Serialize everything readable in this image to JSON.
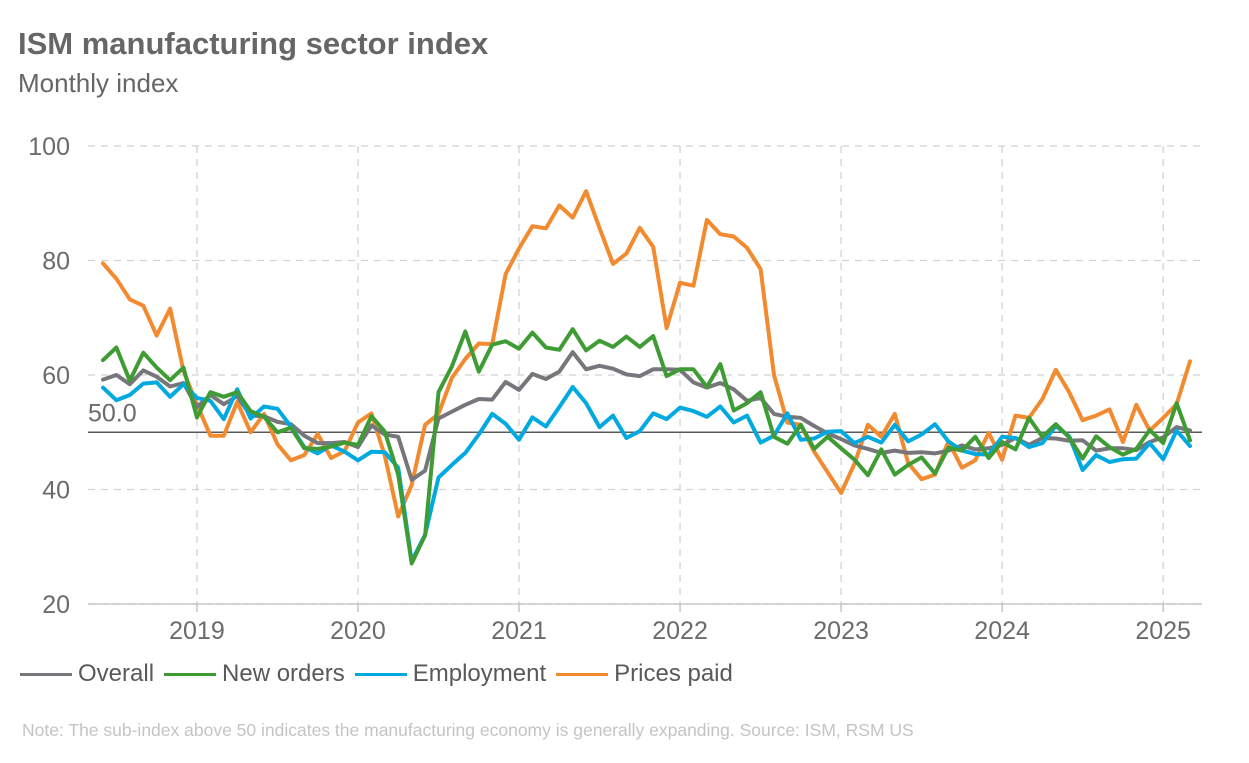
{
  "title": "ISM manufacturing sector index",
  "subtitle": "Monthly index",
  "note": "Note: The sub-index above 50 indicates the manufacturing economy is generally expanding. Source: ISM, RSM US",
  "chart_data": {
    "type": "line",
    "title": "ISM manufacturing sector index",
    "subtitle": "Monthly index",
    "x_start": "2018-06",
    "x_end": "2025-03",
    "x_tick_labels": [
      "2019",
      "2020",
      "2021",
      "2022",
      "2023",
      "2024",
      "2025"
    ],
    "ylim": [
      20,
      100
    ],
    "y_ticks": [
      20,
      40,
      60,
      80,
      100
    ],
    "reference_line": {
      "value": 50,
      "label": "50.0"
    },
    "grid": true,
    "legend_position": "bottom",
    "series": [
      {
        "name": "Overall",
        "color": "#77767b",
        "values": [
          59.2,
          60.0,
          58.4,
          60.8,
          59.7,
          58.0,
          58.6,
          54.4,
          56.5,
          54.9,
          56.3,
          52.9,
          52.8,
          51.8,
          51.4,
          49.4,
          48.1,
          48.1,
          48.3,
          47.4,
          51.2,
          49.6,
          49.2,
          41.7,
          43.3,
          52.4,
          53.6,
          54.8,
          55.8,
          55.7,
          58.8,
          57.4,
          60.2,
          59.3,
          60.6,
          64.0,
          61.0,
          61.6,
          61.1,
          60.1,
          59.8,
          61.0,
          61.0,
          60.9,
          58.7,
          57.8,
          58.6,
          57.5,
          55.5,
          56.0,
          53.2,
          52.7,
          52.5,
          51.1,
          49.8,
          48.8,
          47.7,
          47.1,
          46.4,
          46.8,
          46.4,
          46.5,
          46.3,
          46.8,
          47.7,
          47.0,
          47.2,
          47.8,
          49.0,
          47.8,
          49.0,
          48.9,
          48.5,
          48.6,
          46.8,
          47.2,
          47.2,
          46.9,
          48.3,
          49.1,
          50.9,
          50.3
        ]
      },
      {
        "name": "New orders",
        "color": "#3f9c35",
        "values": [
          62.6,
          64.8,
          59.0,
          63.9,
          61.3,
          59.1,
          61.3,
          52.6,
          57.0,
          56.2,
          57.0,
          53.7,
          52.7,
          50.0,
          50.8,
          47.2,
          47.1,
          47.5,
          48.2,
          47.8,
          52.8,
          50.1,
          42.6,
          27.1,
          32.0,
          57.0,
          61.5,
          67.6,
          60.6,
          65.3,
          65.9,
          64.6,
          67.4,
          64.8,
          64.4,
          68.0,
          64.3,
          66.0,
          64.9,
          66.7,
          64.9,
          66.8,
          59.8,
          61.0,
          61.0,
          57.9,
          61.9,
          53.8,
          55.1,
          57.0,
          49.2,
          48.0,
          51.3,
          47.1,
          49.2,
          47.2,
          45.2,
          42.5,
          47.0,
          42.6,
          44.3,
          45.6,
          42.8,
          47.3,
          46.8,
          49.2,
          45.5,
          48.3,
          47.0,
          52.5,
          49.2,
          51.4,
          49.1,
          45.4,
          49.3,
          47.4,
          46.1,
          47.1,
          50.4,
          48.1,
          55.1,
          48.6
        ]
      },
      {
        "name": "Employment",
        "color": "#00a9e0",
        "values": [
          57.8,
          55.6,
          56.5,
          58.5,
          58.7,
          56.2,
          58.4,
          56.0,
          55.5,
          52.3,
          57.5,
          52.4,
          54.5,
          54.1,
          51.0,
          47.4,
          46.3,
          47.7,
          46.6,
          45.1,
          46.6,
          46.5,
          43.8,
          27.5,
          32.1,
          42.1,
          44.3,
          46.4,
          49.6,
          53.2,
          51.5,
          48.7,
          52.6,
          51.0,
          54.4,
          57.9,
          55.1,
          50.9,
          52.9,
          49.0,
          50.2,
          53.3,
          52.3,
          54.3,
          53.7,
          52.7,
          54.5,
          51.7,
          52.9,
          48.2,
          49.4,
          53.3,
          48.7,
          48.9,
          50.1,
          50.2,
          48.1,
          49.2,
          48.2,
          51.3,
          48.4,
          49.6,
          51.4,
          48.4,
          46.8,
          46.2,
          46.1,
          49.2,
          49.0,
          47.4,
          48.1,
          51.1,
          49.3,
          43.4,
          46.0,
          44.8,
          45.3,
          45.4,
          48.1,
          45.3,
          50.3,
          47.6
        ]
      },
      {
        "name": "Prices paid",
        "color": "#f28a30",
        "values": [
          79.5,
          76.8,
          73.2,
          72.1,
          66.9,
          71.6,
          60.7,
          54.9,
          49.4,
          49.4,
          55.3,
          50.0,
          53.2,
          47.9,
          45.1,
          46.0,
          49.7,
          45.5,
          46.7,
          51.7,
          53.3,
          45.9,
          35.3,
          40.8,
          51.3,
          53.2,
          59.5,
          62.8,
          65.5,
          65.4,
          77.6,
          82.1,
          86.0,
          85.6,
          89.6,
          87.5,
          92.1,
          85.7,
          79.4,
          81.2,
          85.7,
          82.4,
          68.2,
          76.1,
          75.6,
          87.1,
          84.6,
          84.2,
          82.2,
          78.5,
          60.0,
          51.7,
          51.3,
          46.6,
          43.0,
          39.4,
          44.5,
          51.3,
          49.2,
          53.2,
          44.6,
          41.8,
          42.6,
          48.4,
          43.8,
          45.1,
          49.9,
          45.2,
          52.9,
          52.5,
          55.8,
          60.9,
          57.0,
          52.1,
          52.9,
          54.0,
          48.3,
          54.8,
          50.3,
          52.5,
          54.9,
          62.4
        ]
      }
    ]
  }
}
